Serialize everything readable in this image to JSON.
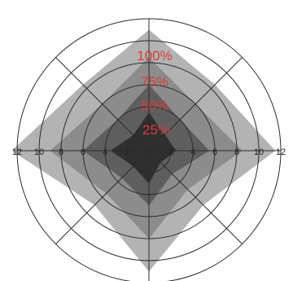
{
  "chart_data": {
    "type": "radar",
    "title": "",
    "rings": [
      2,
      4,
      6,
      8,
      10,
      12
    ],
    "tick_labels_left": [
      "12",
      "10",
      "8",
      "6",
      "4",
      "2"
    ],
    "tick_labels_right": [
      "2",
      "4",
      "6",
      "8",
      "10",
      "12"
    ],
    "spokes_deg": [
      0,
      45,
      90,
      135
    ],
    "series": [
      {
        "name": "100%",
        "color": "#b3b3b3",
        "values": [
          11.0,
          8.5,
          11.5,
          7.0,
          11.0,
          7.0,
          12.5,
          8.5
        ]
      },
      {
        "name": "75%",
        "color": "#8c8c8c",
        "values": [
          8.5,
          6.0,
          8.5,
          5.0,
          8.0,
          5.5,
          9.0,
          6.0
        ]
      },
      {
        "name": "50%",
        "color": "#5e5e5e",
        "values": [
          6.0,
          4.0,
          5.5,
          3.0,
          5.0,
          3.5,
          6.0,
          4.0
        ]
      },
      {
        "name": "25%",
        "color": "#2f2f2f",
        "values": [
          3.5,
          2.0,
          2.5,
          1.5,
          3.0,
          2.0,
          3.5,
          2.0
        ]
      }
    ],
    "level_label_color": "#d83a3a",
    "grid": true
  }
}
